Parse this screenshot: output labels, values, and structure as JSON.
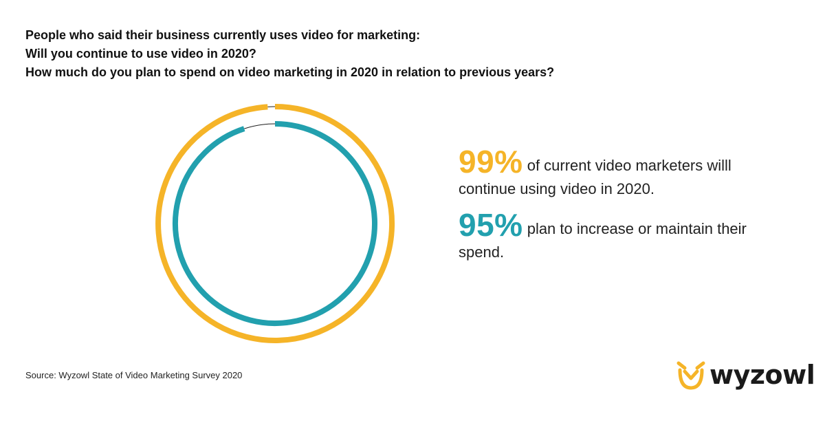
{
  "header": {
    "lines": [
      "People who said their business currently uses video for marketing:",
      "Will you continue to use video in 2020?",
      "How much do you plan to spend on video marketing in 2020 in relation to previous years?"
    ]
  },
  "chart_data": {
    "type": "pie",
    "variant": "concentric-donut",
    "series": [
      {
        "value": 99,
        "color": "#F5B428"
      },
      {
        "value": 95,
        "color": "#22A0AE"
      }
    ],
    "remainder_color": "#1a1a1a"
  },
  "stats": [
    {
      "value": "99%",
      "text": "of current video marketers willl continue using video in 2020.",
      "color": "#F5B428"
    },
    {
      "value": "95%",
      "text": "plan to increase or maintain their spend.",
      "color": "#22A0AE"
    }
  ],
  "source": "Source: Wyzowl State of Video Marketing Survey 2020",
  "logo": {
    "text": "wyzowl",
    "icon": "owl-icon",
    "color": "#F5B428"
  }
}
